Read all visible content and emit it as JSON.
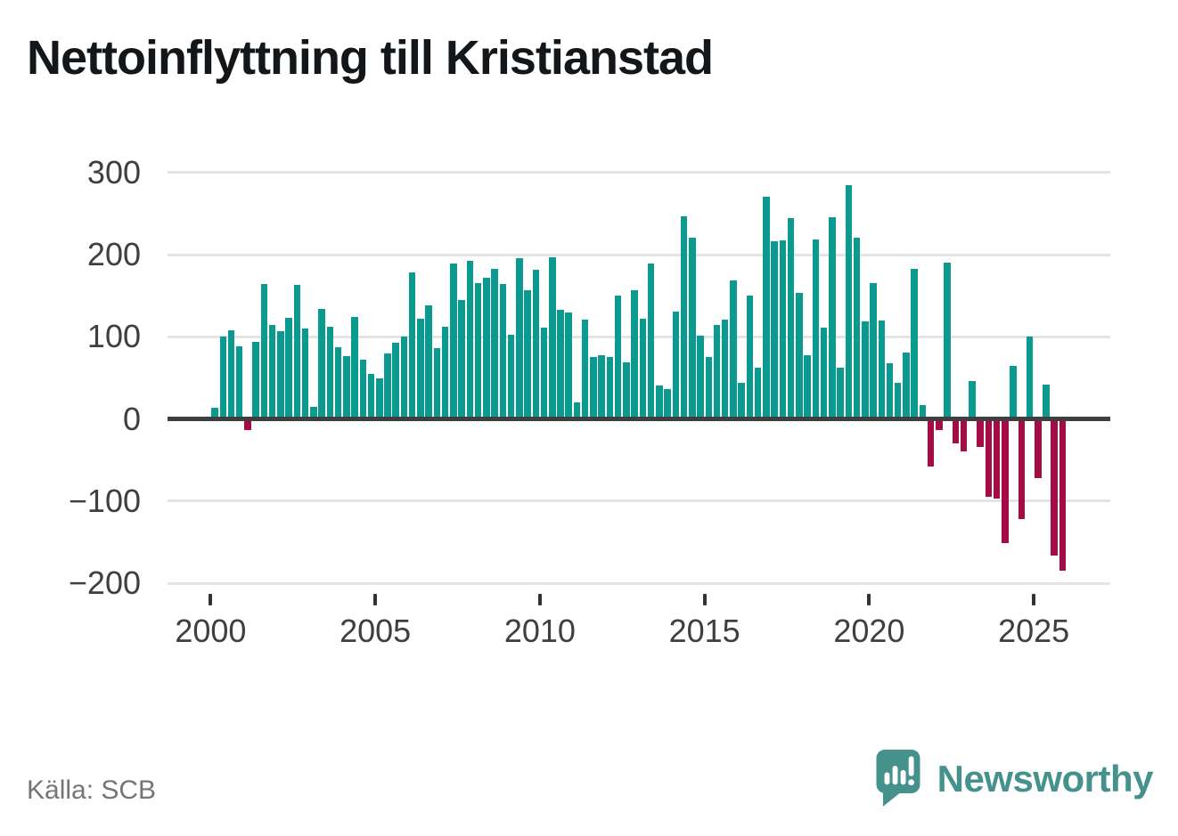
{
  "title": "Nettoinflyttning till Kristianstad",
  "source": "Källa: SCB",
  "logo": {
    "text": "Newsworthy",
    "icon": "newsworthy-speech-bubble-bar-chart-icon",
    "color": "#45928c"
  },
  "chart_data": {
    "type": "bar",
    "title": "Nettoinflyttning till Kristianstad",
    "frequency": "quarterly",
    "periods_per_year": 4,
    "start_year": 2000,
    "end_year": 2025,
    "values": [
      14,
      100,
      108,
      88,
      -14,
      94,
      164,
      114,
      107,
      123,
      163,
      110,
      15,
      134,
      112,
      87,
      77,
      124,
      72,
      55,
      50,
      80,
      93,
      100,
      178,
      122,
      138,
      86,
      112,
      189,
      145,
      192,
      165,
      172,
      183,
      164,
      103,
      196,
      157,
      182,
      111,
      197,
      133,
      130,
      20,
      121,
      75,
      78,
      76,
      150,
      69,
      157,
      122,
      189,
      41,
      37,
      131,
      247,
      221,
      101,
      76,
      114,
      121,
      169,
      44,
      150,
      63,
      271,
      216,
      217,
      244,
      154,
      78,
      218,
      111,
      246,
      62,
      285,
      221,
      119,
      165,
      120,
      68,
      44,
      81,
      183,
      17,
      -58,
      -14,
      190,
      -30,
      -39,
      46,
      -34,
      -95,
      -97,
      -151,
      65,
      -122,
      100,
      -72,
      42,
      -166,
      -185
    ],
    "y_ticks": [
      300,
      200,
      100,
      0,
      -100,
      -200
    ],
    "x_ticks": [
      2000,
      2005,
      2010,
      2015,
      2020,
      2025
    ],
    "ylim": [
      -215,
      310
    ],
    "grid": true,
    "legend": false,
    "colors": {
      "positive": "#0a9a8f",
      "negative": "#a50b44",
      "gridline": "#e4e4e4",
      "zero_line": "#3f3f3f",
      "axis_text": "#3f3f3f",
      "title_text": "#14171a",
      "source_text": "#757575",
      "logo": "#45928c"
    }
  }
}
